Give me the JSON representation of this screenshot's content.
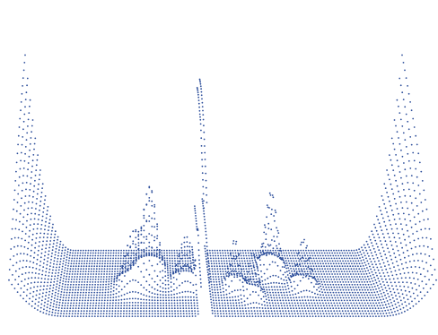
{
  "chart_data": {
    "type": "scatter",
    "style": "3d-dot-surface",
    "title": "",
    "xlabel": "",
    "ylabel": "",
    "zlabel": "",
    "axes_visible": false,
    "grid": false,
    "legend": "none",
    "dot_color": "#2b4d9a",
    "background": "#ffffff",
    "rows": 26,
    "points_per_row": 150,
    "x_range": [
      0,
      1
    ],
    "depth_range": [
      0,
      1
    ],
    "z_range": [
      0,
      1
    ],
    "baseline": 0.18,
    "features": [
      {
        "name": "left-wall",
        "shape": "wall",
        "side": "left",
        "width": 0.13,
        "peak_height": 1.0,
        "depth_min": 0.0
      },
      {
        "name": "right-wall",
        "shape": "wall",
        "side": "right",
        "width": 0.13,
        "peak_height": 1.0,
        "depth_min": 0.0
      },
      {
        "name": "center-spike",
        "shape": "peak",
        "x": 0.46,
        "depth": 1.0,
        "spread_x": 0.006,
        "spread_depth": 0.9,
        "height": 1.0
      },
      {
        "name": "peak-a",
        "shape": "peak",
        "x": 0.33,
        "depth": 0.62,
        "spread_x": 0.018,
        "spread_depth": 0.1,
        "height": 0.42
      },
      {
        "name": "peak-b",
        "shape": "peak",
        "x": 0.29,
        "depth": 0.45,
        "spread_x": 0.02,
        "spread_depth": 0.08,
        "height": 0.25
      },
      {
        "name": "peak-c",
        "shape": "peak",
        "x": 0.42,
        "depth": 0.48,
        "spread_x": 0.018,
        "spread_depth": 0.07,
        "height": 0.22
      },
      {
        "name": "peak-d",
        "shape": "peak",
        "x": 0.64,
        "depth": 0.7,
        "spread_x": 0.015,
        "spread_depth": 0.08,
        "height": 0.38
      },
      {
        "name": "peak-e",
        "shape": "peak",
        "x": 0.54,
        "depth": 0.45,
        "spread_x": 0.012,
        "spread_depth": 0.06,
        "height": 0.22
      },
      {
        "name": "peak-f",
        "shape": "peak",
        "x": 0.71,
        "depth": 0.45,
        "spread_x": 0.015,
        "spread_depth": 0.06,
        "height": 0.22
      },
      {
        "name": "peak-g",
        "shape": "peak",
        "x": 0.58,
        "depth": 0.3,
        "spread_x": 0.012,
        "spread_depth": 0.06,
        "height": 0.2
      }
    ]
  }
}
